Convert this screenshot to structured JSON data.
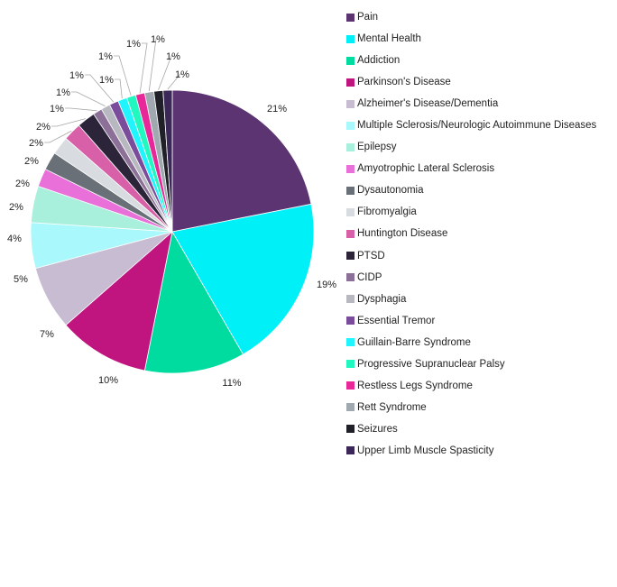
{
  "chart_data": {
    "type": "pie",
    "title": "",
    "legend_position": "right",
    "categories": [
      "Pain",
      "Mental Health",
      "Addiction",
      "Parkinson's Disease",
      "Alzheimer's Disease/Dementia",
      "Multiple Sclerosis/Neurologic Autoimmune  Diseases",
      "Epilepsy",
      "Amyotrophic Lateral Sclerosis",
      "Dysautonomia",
      "Fibromyalgia",
      "Huntington Disease",
      "PTSD",
      "CIDP",
      "Dysphagia",
      "Essential Tremor",
      "Guillain-Barre Syndrome",
      "Progressive Supranuclear Palsy",
      "Restless Legs Syndrome",
      "Rett Syndrome",
      "Seizures",
      "Upper Limb Muscle Spasticity"
    ],
    "values": [
      21,
      19,
      11,
      10,
      7,
      5,
      4,
      2,
      2,
      2,
      2,
      2,
      1,
      1,
      1,
      1,
      1,
      1,
      1,
      1,
      1
    ],
    "labels": [
      "21%",
      "19%",
      "11%",
      "10%",
      "7%",
      "5%",
      "4%",
      "2%",
      "2%",
      "2%",
      "2%",
      "2%",
      "1%",
      "1%",
      "1%",
      "1%",
      "1%",
      "1%",
      "1%",
      "1%",
      "1%"
    ],
    "colors": [
      "#5b3471",
      "#00f0f8",
      "#00dca0",
      "#c0147f",
      "#c8bcd2",
      "#a8f8fc",
      "#a8f0dc",
      "#e870d8",
      "#6a7078",
      "#d8dce0",
      "#d860a8",
      "#2c2438",
      "#8c7098",
      "#b8b8c0",
      "#7c4c9c",
      "#20f4fc",
      "#20f8c0",
      "#e82898",
      "#a0a8b0",
      "#202028",
      "#3c2858"
    ]
  }
}
